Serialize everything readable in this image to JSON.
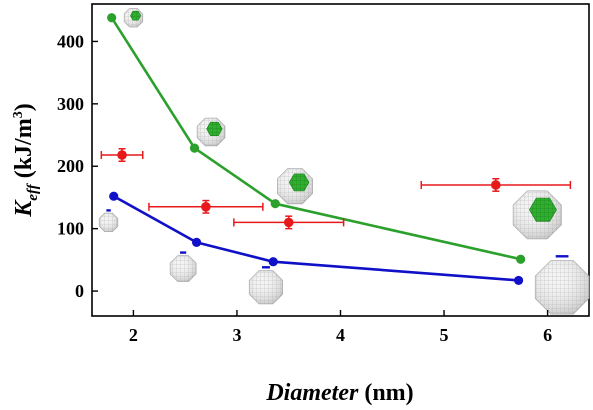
{
  "chart_data": {
    "type": "scatter",
    "xlabel": {
      "main": "Diameter",
      "unit": " (nm)"
    },
    "ylabel": {
      "k": "K",
      "sub": "eff",
      "unit": " (kJ/m",
      "sup": "3",
      "close": ")"
    },
    "xlim": [
      1.6,
      6.4
    ],
    "ylim": [
      -40,
      460
    ],
    "x_ticks": [
      2,
      3,
      4,
      5,
      6
    ],
    "y_ticks": [
      0,
      100,
      200,
      300,
      400
    ],
    "grid": false,
    "series": [
      {
        "color": "#2ca02c",
        "style": "line-markers",
        "points": [
          {
            "x": 1.79,
            "y": 438
          },
          {
            "x": 2.59,
            "y": 229
          },
          {
            "x": 3.37,
            "y": 140
          },
          {
            "x": 5.74,
            "y": 51
          }
        ]
      },
      {
        "color": "#1010c8",
        "style": "line-markers",
        "points": [
          {
            "x": 1.81,
            "y": 152
          },
          {
            "x": 2.61,
            "y": 78
          },
          {
            "x": 3.35,
            "y": 47
          },
          {
            "x": 5.72,
            "y": 17
          }
        ]
      },
      {
        "color": "#e8191b",
        "style": "markers-errorbars",
        "points": [
          {
            "x": 1.89,
            "y": 218,
            "xerr": 0.2,
            "yerr": 10
          },
          {
            "x": 2.7,
            "y": 135,
            "xerr": 0.55,
            "yerr": 10
          },
          {
            "x": 3.5,
            "y": 110,
            "xerr": 0.53,
            "yerr": 10
          },
          {
            "x": 5.5,
            "y": 170,
            "xerr": 0.72,
            "yerr": 10
          }
        ]
      }
    ],
    "insets": [
      {
        "x": 2.0,
        "y": 438,
        "r": 10,
        "green": true
      },
      {
        "x": 2.75,
        "y": 255,
        "r": 15,
        "green": true
      },
      {
        "x": 3.56,
        "y": 168,
        "r": 19,
        "green": true
      },
      {
        "x": 5.9,
        "y": 122,
        "r": 26,
        "green": true
      },
      {
        "x": 1.76,
        "y": 110,
        "r": 10,
        "green": false
      },
      {
        "x": 2.48,
        "y": 36,
        "r": 14,
        "green": false
      },
      {
        "x": 3.28,
        "y": 6,
        "r": 18,
        "green": false
      },
      {
        "x": 6.14,
        "y": 6,
        "r": 29,
        "green": false
      }
    ]
  }
}
